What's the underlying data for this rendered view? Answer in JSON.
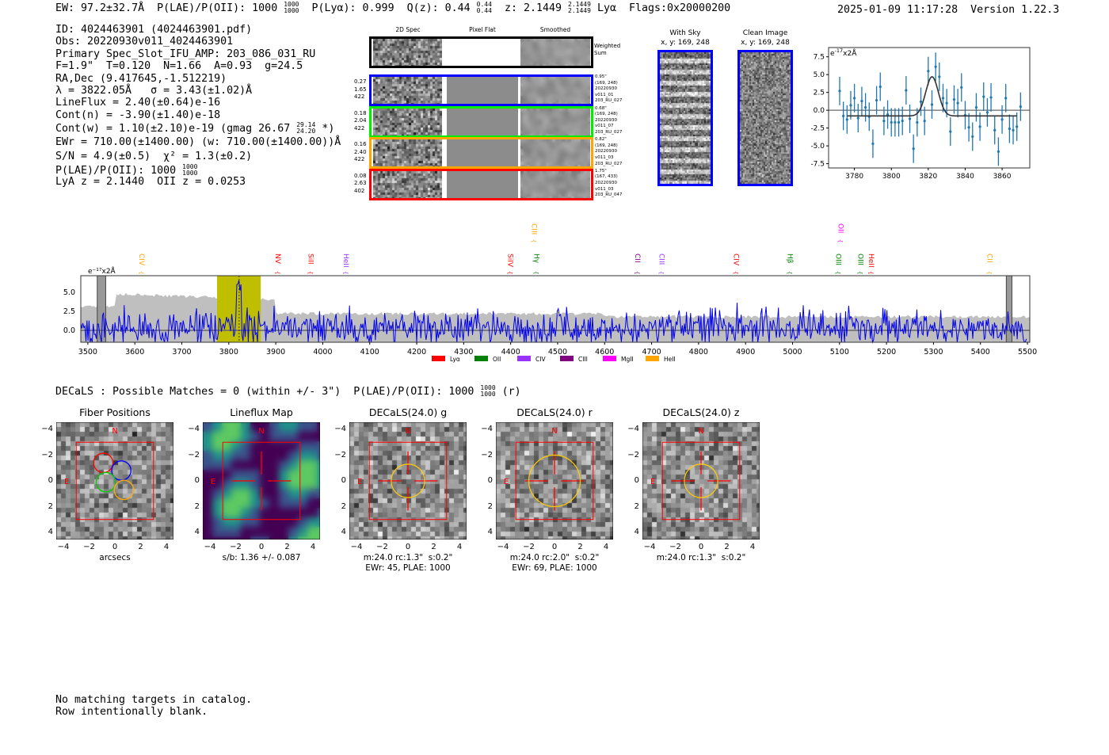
{
  "header": {
    "ew": "EW: 97.2±32.7Å",
    "plae": "P(LAE)/P(OII): 1000",
    "plae_hi": "1000",
    "plae_lo": "1000",
    "plya": "P(Lyα): 0.999",
    "qz": "Q(z): 0.44",
    "qz_hi": "0.44",
    "qz_lo": "0.44",
    "z": "z: 2.1449",
    "z_hi": "2.1449",
    "z_lo": "2.1449",
    "line": "Lyα",
    "flags": "Flags:0x20000200",
    "datetime": "2025-01-09 11:17:28",
    "version": "Version 1.22.3"
  },
  "info": [
    "ID: 4024463901 (4024463901.pdf)",
    "Obs: 20220930v011_4024463901",
    "Primary Spec_Slot_IFU_AMP: 203_086_031_RU",
    "F=1.9\"  T=0.120  N=1.66  A=0.93  g=24.5",
    "RA,Dec (9.417645,-1.512219)",
    "λ = 3822.05Å   σ = 3.43(±1.02)Å",
    "LineFlux = 2.40(±0.64)e-16",
    "Cont(n) = -3.90(±1.40)e-18"
  ],
  "info_contw": "Cont(w) = 1.10(±2.10)e-19 (gmag 26.67",
  "info_contw_hi": "29.14",
  "info_contw_lo": "24.20",
  "info_contw_end": "*)",
  "info2": [
    "EWr = 710.00(±1400.00) (w: 710.00(±1400.00))Å",
    "S/N = 4.9(±0.5)  χ² = 1.3(±0.2)"
  ],
  "info_plae": "P(LAE)/P(OII): 1000",
  "info_plae_hi": "1000",
  "info_plae_lo": "1000",
  "info_z": "LyA z = 2.1440  OII z = 0.0253",
  "spec2d": {
    "col_headers": [
      "2D Spec",
      "Pixel Flat",
      "Smoothed"
    ],
    "weighted_label": "Weighted\nSum",
    "rows": [
      {
        "color": "#0000ff",
        "left": "0.27\n1.65\n422",
        "right": "0.95\"\n(169, 248)\n20220930\nv011_01\n203_RU_027"
      },
      {
        "color": "#00ee00",
        "left": "0.18\n2.04\n422",
        "right": "0.68\"\n(169, 248)\n20220930\nv011_07\n203_RU_027"
      },
      {
        "color": "#ffa500",
        "left": "0.16\n2.40\n422",
        "right": "0.82\"\n(169, 248)\n20220930\nv011_03\n203_RU_027"
      },
      {
        "color": "#ff0000",
        "left": "0.08\n2.63\n402",
        "right": "1.75\"\n(167, 433)\n20220930\nv011_03\n203_RU_047"
      }
    ]
  },
  "sky": {
    "with_sky_title": "With Sky",
    "with_sky_xy": "x, y: 169, 248",
    "clean_title": "Clean Image",
    "clean_xy": "x, y: 169, 248"
  },
  "chart_data": [
    {
      "type": "scatter",
      "title": "",
      "ylabel": "e$^{-17}$x2Å",
      "unit_label": "e⁻¹⁷x2Å",
      "xlim": [
        3766,
        3875
      ],
      "ylim": [
        -8.1,
        8.8
      ],
      "xticks": [
        3780,
        3800,
        3820,
        3840,
        3860
      ],
      "yticks": [
        "7.5",
        "5.0",
        "2.5",
        "0.0",
        "-2.5",
        "-5.0",
        "-7.5"
      ],
      "x_start": 3772,
      "x_step": 2,
      "y": [
        2.7,
        -0.8,
        -1.3,
        0.7,
        1.7,
        -1.1,
        1.3,
        0.4,
        -0.9,
        -4.7,
        1.4,
        3.3,
        -1.5,
        -0.6,
        -1.7,
        -1.7,
        -1.7,
        -1.5,
        2.8,
        -1.2,
        -5.4,
        -1.7,
        1.2,
        -1.5,
        5.5,
        0.8,
        6.1,
        4.7,
        1.7,
        1.0,
        -3.0,
        1.5,
        1.0,
        3.2,
        -0.7,
        -2.4,
        -3.7,
        0.4,
        -2.3,
        1.9,
        -0.3,
        1.8,
        -2.8,
        -5.8,
        -1.3,
        1.7,
        -2.6,
        -2.8,
        -2.3,
        0.5
      ],
      "yerr": 2.0,
      "model": {
        "center": 3822.05,
        "sigma": 3.43,
        "amp": 5.5,
        "baseline": -0.8
      }
    },
    {
      "type": "line",
      "unit_label": "e⁻¹⁷x2Å",
      "xlim": [
        3485,
        5505
      ],
      "ylim": [
        -1.56,
        7.2
      ],
      "xticks": [
        "3500",
        "3600",
        "3700",
        "3800",
        "3900",
        "4000",
        "4100",
        "4200",
        "4300",
        "4400",
        "4500",
        "4600",
        "4700",
        "4800",
        "4900",
        "5000",
        "5100",
        "5200",
        "5300",
        "5400",
        "5500"
      ],
      "yticks": [
        "5.0",
        "2.5",
        "0.0"
      ],
      "highlight": [
        3775,
        3868
      ],
      "line_center": 3822,
      "line_labels": [
        {
          "t": "CIV",
          "w": 3605,
          "c": "#ffa500",
          "up": false
        },
        {
          "t": "NV",
          "w": 3895,
          "c": "#ff0000",
          "up": false
        },
        {
          "t": "SiII",
          "w": 3965,
          "c": "#ff0000",
          "up": false
        },
        {
          "t": "HeII",
          "w": 4040,
          "c": "#9933ff",
          "up": false
        },
        {
          "t": "SiIV",
          "w": 4390,
          "c": "#ff0000",
          "up": false
        },
        {
          "t": "CIII",
          "w": 4440,
          "c": "#ffa500",
          "up": true
        },
        {
          "t": "Hγ",
          "w": 4445,
          "c": "#008000",
          "up": false
        },
        {
          "t": "CII",
          "w": 4660,
          "c": "#800080",
          "up": false
        },
        {
          "t": "CIII",
          "w": 4712,
          "c": "#9933ff",
          "up": false
        },
        {
          "t": "CIV",
          "w": 4870,
          "c": "#ff0000",
          "up": false
        },
        {
          "t": "Hβ",
          "w": 4985,
          "c": "#008000",
          "up": false
        },
        {
          "t": "OII",
          "w": 5093,
          "c": "#ff00ff",
          "up": true
        },
        {
          "t": "OIII",
          "w": 5088,
          "c": "#008000",
          "up": false
        },
        {
          "t": "OIII",
          "w": 5135,
          "c": "#008000",
          "up": false
        },
        {
          "t": "HeII",
          "w": 5158,
          "c": "#ff0000",
          "up": false
        },
        {
          "t": "CII",
          "w": 5410,
          "c": "#ffa500",
          "up": false
        }
      ],
      "legend": [
        {
          "t": "Lyα",
          "c": "#ff0000"
        },
        {
          "t": "OII",
          "c": "#008000"
        },
        {
          "t": "CIV",
          "c": "#9933ff"
        },
        {
          "t": "CIII",
          "c": "#800080"
        },
        {
          "t": "MgII",
          "c": "#ff00ff"
        },
        {
          "t": "HeII",
          "c": "#ffa500"
        }
      ]
    }
  ],
  "decals": {
    "summary": "DECaLS : Possible Matches = 0 (within +/- 3\")  P(LAE)/P(OII): 1000",
    "hi": "1000",
    "lo": "1000",
    "band": "(r)",
    "ticks": [
      "−4",
      "−2",
      "0",
      "2",
      "4"
    ],
    "north": "N",
    "east": "E",
    "panels": [
      {
        "title": "Fiber Positions",
        "caption": "arcsecs",
        "kind": "fiber"
      },
      {
        "title": "Lineflux Map",
        "caption": "s/b: 1.36 +/- 0.087",
        "kind": "flux"
      },
      {
        "title": "DECaLS(24.0) g",
        "caption": "m:24.0 rc:1.3\"  s:0.2\"\nEWr: 45, PLAE: 1000",
        "kind": "g",
        "r": 1.3
      },
      {
        "title": "DECaLS(24.0) r",
        "caption": "m:24.0 rc:2.0\"  s:0.2\"\nEWr: 69, PLAE: 1000",
        "kind": "r",
        "r": 2.0
      },
      {
        "title": "DECaLS(24.0) z",
        "caption": "m:24.0 rc:1.3\"  s:0.2\"",
        "kind": "z",
        "r": 1.3
      }
    ]
  },
  "footer": [
    "No matching targets in catalog.",
    "Row intentionally blank."
  ]
}
